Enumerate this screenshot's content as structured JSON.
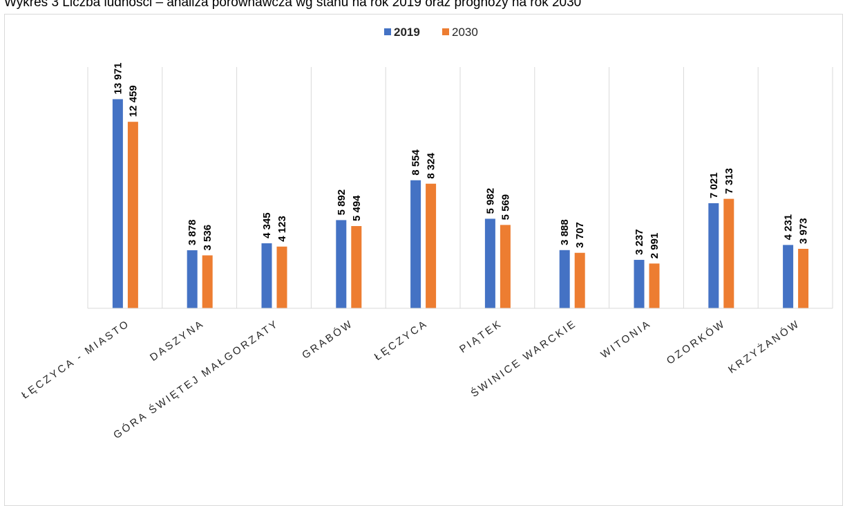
{
  "caption": "Wykres 3 Liczba ludności – analiza porównawcza wg stanu na rok 2019 oraz prognozy na rok 2030",
  "chart_data": {
    "type": "bar",
    "title": "",
    "xlabel": "",
    "ylabel": "",
    "categories": [
      "ŁĘCZYCA - MIASTO",
      "DASZYNA",
      "GÓRA ŚWIĘTEJ MAŁGORZATY",
      "GRABÓW",
      "ŁĘCZYCA",
      "PIĄTEK",
      "ŚWINICE WARCKIE",
      "WITONIA",
      "OZORKÓW",
      "KRZYŻANÓW"
    ],
    "series": [
      {
        "name": "2019",
        "color": "#4472c4",
        "values": [
          13971,
          3878,
          4345,
          5892,
          8554,
          5982,
          3888,
          3237,
          7021,
          4231
        ],
        "labels": [
          "13 971",
          "3 878",
          "4 345",
          "5 892",
          "8 554",
          "5 982",
          "3 888",
          "3 237",
          "7 021",
          "4 231"
        ]
      },
      {
        "name": "2030",
        "color": "#ed7d31",
        "values": [
          12459,
          3536,
          4123,
          5494,
          8324,
          5569,
          3707,
          2991,
          7313,
          3973
        ],
        "labels": [
          "12 459",
          "3 536",
          "4 123",
          "5 494",
          "8 324",
          "5 569",
          "3 707",
          "2 991",
          "7 313",
          "3 973"
        ]
      }
    ],
    "ylim": [
      0,
      15000
    ],
    "grid": "vertical category separators",
    "legend": "top-center"
  }
}
